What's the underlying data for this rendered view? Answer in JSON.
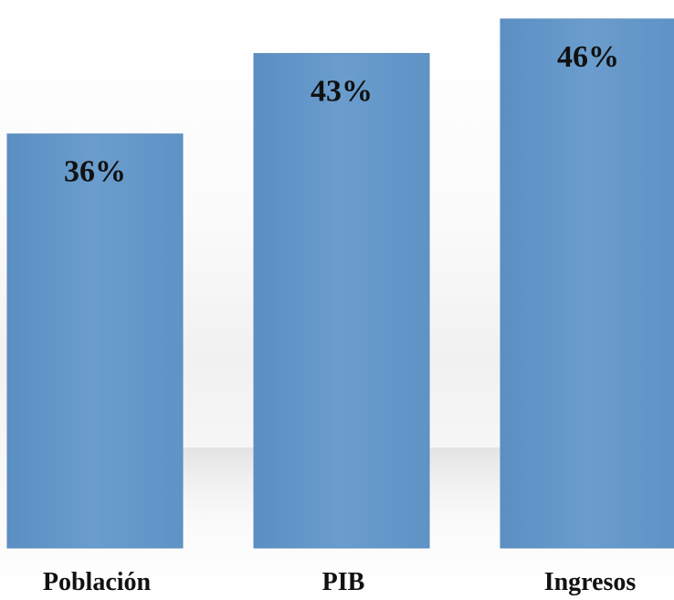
{
  "chart_data": {
    "type": "bar",
    "categories": [
      "Población",
      "PIB",
      "Ingresos"
    ],
    "values": [
      36,
      43,
      46
    ],
    "value_labels": [
      "36%",
      "43%",
      "46%"
    ],
    "ylim": [
      0,
      46.7
    ],
    "grid": false,
    "legend": "none",
    "bar_color": "#6497c8",
    "bar_edge_color": "#5a8cbf",
    "label_color": "#111111"
  }
}
